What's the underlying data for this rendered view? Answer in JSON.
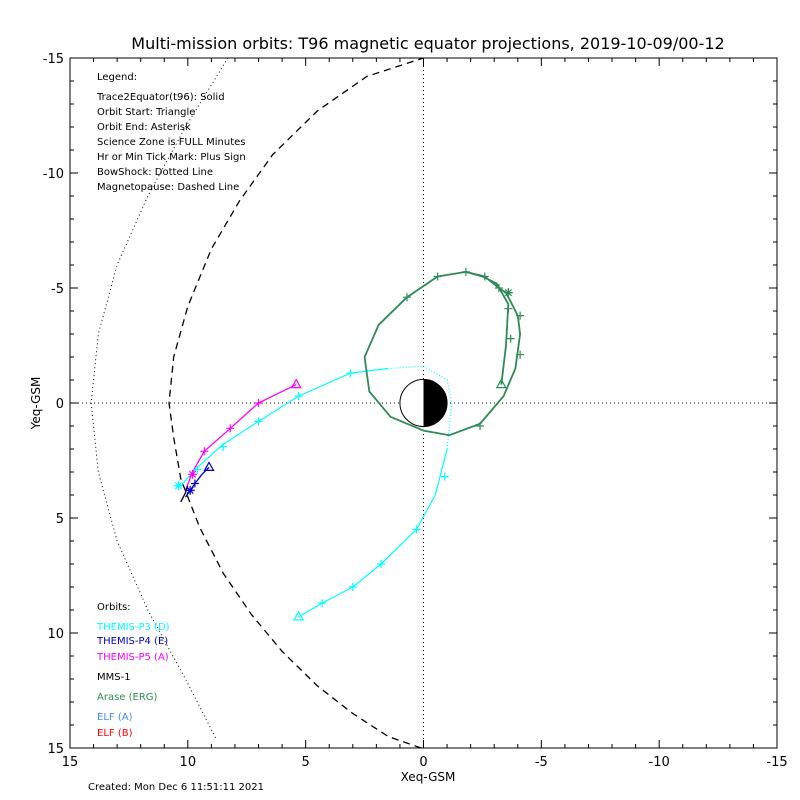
{
  "chart_data": {
    "type": "line",
    "title": "Multi-mission orbits: T96 magnetic equator projections, 2019-10-09/00-12",
    "xlabel": "Xeq-GSM",
    "ylabel": "Yeq-GSM",
    "xlim": [
      15,
      -15
    ],
    "ylim": [
      -15,
      15
    ],
    "x_ticks": [
      "15",
      "10",
      "5",
      "0",
      "-5",
      "-10",
      "-15"
    ],
    "y_ticks": [
      "-15",
      "-10",
      "-5",
      "0",
      "5",
      "10",
      "15"
    ],
    "y_axis_inverted": true,
    "grid": false,
    "legend_title": "Legend:",
    "legend_lines": [
      "Trace2Equator(t96): Solid",
      "Orbit Start: Triangle",
      "Orbit End: Asterisk",
      "Science Zone is FULL Minutes",
      "Hr or Min Tick Mark: Plus Sign",
      "BowShock: Dotted Line",
      "Magnetopause: Dashed Line"
    ],
    "orbits_title": "Orbits:",
    "created": "Created: Mon Dec  6 11:51:11 2021",
    "series": [
      {
        "name": "THEMIS-P3 (D)",
        "color": "#00ffff",
        "points": [
          [
            5.3,
            9.3
          ],
          [
            4.3,
            8.7
          ],
          [
            3.0,
            8.0
          ],
          [
            1.8,
            7.0
          ],
          [
            0.3,
            5.5
          ],
          [
            -0.5,
            4.0
          ],
          [
            -1.0,
            2.0
          ],
          [
            -1.2,
            0.0
          ],
          [
            -1.0,
            -1.0
          ],
          [
            0.0,
            -1.6
          ],
          [
            1.5,
            -1.5
          ],
          [
            3.1,
            -1.3
          ],
          [
            5.3,
            -0.3
          ],
          [
            7.0,
            0.8
          ],
          [
            8.5,
            1.8
          ],
          [
            9.6,
            2.8
          ],
          [
            10.3,
            3.6
          ]
        ],
        "ticks": [
          [
            4.3,
            8.7
          ],
          [
            3.0,
            8.0
          ],
          [
            1.8,
            7.0
          ],
          [
            0.3,
            5.5
          ],
          [
            -0.9,
            3.2
          ],
          [
            3.1,
            -1.3
          ],
          [
            5.3,
            -0.3
          ],
          [
            7.0,
            0.8
          ],
          [
            8.5,
            1.9
          ],
          [
            9.6,
            2.9
          ],
          [
            10.4,
            3.6
          ]
        ],
        "dotted_range": [
          6,
          10
        ],
        "start": [
          5.3,
          9.3
        ],
        "end": [
          10.4,
          3.6
        ]
      },
      {
        "name": "THEMIS-P4 (E)",
        "color": "#0000cc",
        "points": [
          [
            9.1,
            2.8
          ],
          [
            9.4,
            3.1
          ],
          [
            9.7,
            3.5
          ],
          [
            9.9,
            3.8
          ],
          [
            10.1,
            4.1
          ]
        ],
        "ticks": [
          [
            9.7,
            3.5
          ]
        ],
        "start": [
          9.1,
          2.8
        ],
        "end": [
          9.9,
          3.8
        ]
      },
      {
        "name": "THEMIS-P5 (A)",
        "color": "#ff00ff",
        "points": [
          [
            5.4,
            -0.8
          ],
          [
            7.0,
            0.0
          ],
          [
            8.2,
            1.1
          ],
          [
            9.3,
            2.1
          ],
          [
            9.8,
            3.0
          ],
          [
            10.1,
            3.8
          ]
        ],
        "ticks": [
          [
            7.0,
            0.0
          ],
          [
            8.2,
            1.1
          ],
          [
            9.3,
            2.1
          ]
        ],
        "start": [
          5.4,
          -0.8
        ],
        "end": [
          9.8,
          3.1
        ]
      },
      {
        "name": "MMS-1",
        "color": "#000000",
        "points": [
          [
            10.0,
            3.6
          ],
          [
            10.1,
            3.9
          ],
          [
            10.3,
            4.3
          ]
        ],
        "ticks": [],
        "start": null,
        "end": null
      },
      {
        "name": "Arase (ERG)",
        "color": "#2e8b57",
        "points": [
          [
            -3.3,
            -0.8
          ],
          [
            -3.5,
            -2.5
          ],
          [
            -3.6,
            -4.3
          ],
          [
            -3.1,
            -5.2
          ],
          [
            -2.5,
            -5.5
          ],
          [
            -1.8,
            -5.7
          ],
          [
            -0.6,
            -5.5
          ],
          [
            0.7,
            -4.6
          ],
          [
            1.9,
            -3.4
          ],
          [
            2.5,
            -2.0
          ],
          [
            2.3,
            -0.5
          ],
          [
            1.4,
            0.6
          ],
          [
            0.0,
            1.2
          ],
          [
            -1.1,
            1.4
          ],
          [
            -2.4,
            0.9
          ],
          [
            -3.4,
            -0.3
          ],
          [
            -3.9,
            -1.5
          ],
          [
            -4.1,
            -3.0
          ],
          [
            -4.0,
            -3.8
          ],
          [
            -3.5,
            -4.8
          ],
          [
            -3.2,
            -5.0
          ],
          [
            -2.6,
            -5.5
          ],
          [
            -1.8,
            -5.7
          ]
        ],
        "ticks": [
          [
            0.7,
            -4.6
          ],
          [
            -0.6,
            -5.5
          ],
          [
            -1.8,
            -5.7
          ],
          [
            -2.6,
            -5.5
          ],
          [
            -3.2,
            -5.0
          ],
          [
            -3.6,
            -4.8
          ],
          [
            -3.6,
            -4.1
          ],
          [
            -3.7,
            -2.8
          ],
          [
            -4.1,
            -3.8
          ],
          [
            -4.1,
            -2.1
          ],
          [
            -2.4,
            1.0
          ]
        ],
        "start": [
          -3.3,
          -0.8
        ],
        "end": [
          -3.6,
          -4.8
        ]
      },
      {
        "name": "ELF (A)",
        "color": "#4488ff",
        "points": [],
        "ticks": [],
        "start": null,
        "end": null
      },
      {
        "name": "ELF (B)",
        "color": "#ff0000",
        "points": [],
        "ticks": [],
        "start": null,
        "end": null
      }
    ],
    "magnetopause": [
      [
        0.1,
        15.0
      ],
      [
        1.5,
        14.5
      ],
      [
        3.0,
        13.5
      ],
      [
        4.5,
        12.3
      ],
      [
        6.0,
        10.8
      ],
      [
        7.3,
        9.2
      ],
      [
        8.5,
        7.4
      ],
      [
        9.5,
        5.4
      ],
      [
        10.3,
        3.3
      ],
      [
        10.6,
        1.5
      ],
      [
        10.8,
        0.0
      ],
      [
        10.6,
        -2.0
      ],
      [
        10.0,
        -4.2
      ],
      [
        9.0,
        -6.7
      ],
      [
        7.8,
        -8.8
      ],
      [
        6.4,
        -10.8
      ],
      [
        4.5,
        -12.7
      ],
      [
        2.4,
        -14.2
      ],
      [
        0.0,
        -15.0
      ]
    ],
    "bowshock": [
      [
        8.3,
        -15.0
      ],
      [
        10.1,
        -12.0
      ],
      [
        11.7,
        -9.0
      ],
      [
        13.0,
        -6.0
      ],
      [
        13.8,
        -3.0
      ],
      [
        14.1,
        0.0
      ],
      [
        13.8,
        3.0
      ],
      [
        13.0,
        6.0
      ],
      [
        11.7,
        9.0
      ],
      [
        10.1,
        12.0
      ],
      [
        8.8,
        14.6
      ]
    ],
    "earth_radius": 1.0
  }
}
